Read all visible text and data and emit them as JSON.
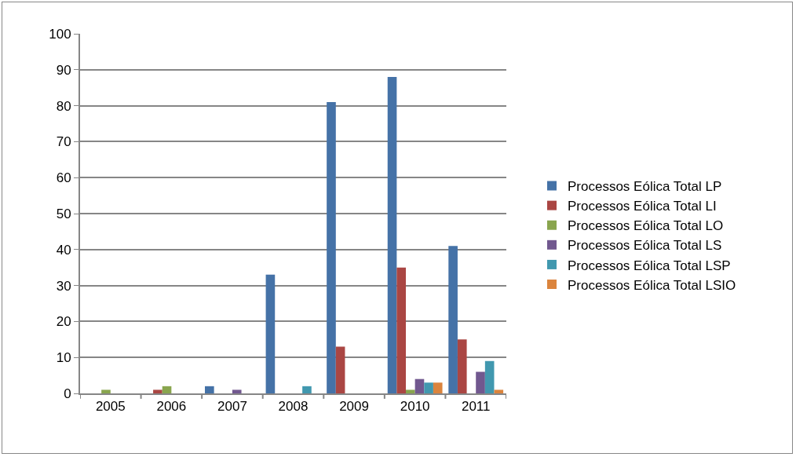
{
  "chart_data": {
    "type": "bar",
    "categories": [
      "2005",
      "2006",
      "2007",
      "2008",
      "2009",
      "2010",
      "2011"
    ],
    "series": [
      {
        "name": "Processos Eólica Total LP",
        "color": "#4572a7",
        "values": [
          0,
          0,
          2,
          33,
          81,
          88,
          41
        ]
      },
      {
        "name": "Processos Eólica Total LI",
        "color": "#aa4643",
        "values": [
          0,
          1,
          0,
          0,
          13,
          35,
          15
        ]
      },
      {
        "name": "Processos Eólica Total LO",
        "color": "#89a54e",
        "values": [
          1,
          2,
          0,
          0,
          0,
          1,
          0
        ]
      },
      {
        "name": "Processos Eólica Total LS",
        "color": "#71588f",
        "values": [
          0,
          0,
          1,
          0,
          0,
          4,
          6
        ]
      },
      {
        "name": "Processos Eólica Total LSP",
        "color": "#4198af",
        "values": [
          0,
          0,
          0,
          2,
          0,
          3,
          9
        ]
      },
      {
        "name": "Processos Eólica Total LSIO",
        "color": "#db843d",
        "values": [
          0,
          0,
          0,
          0,
          0,
          3,
          1
        ]
      }
    ],
    "ylim": [
      0,
      100
    ],
    "yticks": [
      0,
      10,
      20,
      30,
      40,
      50,
      60,
      70,
      80,
      90,
      100
    ],
    "grid": "y",
    "legend": "right"
  }
}
